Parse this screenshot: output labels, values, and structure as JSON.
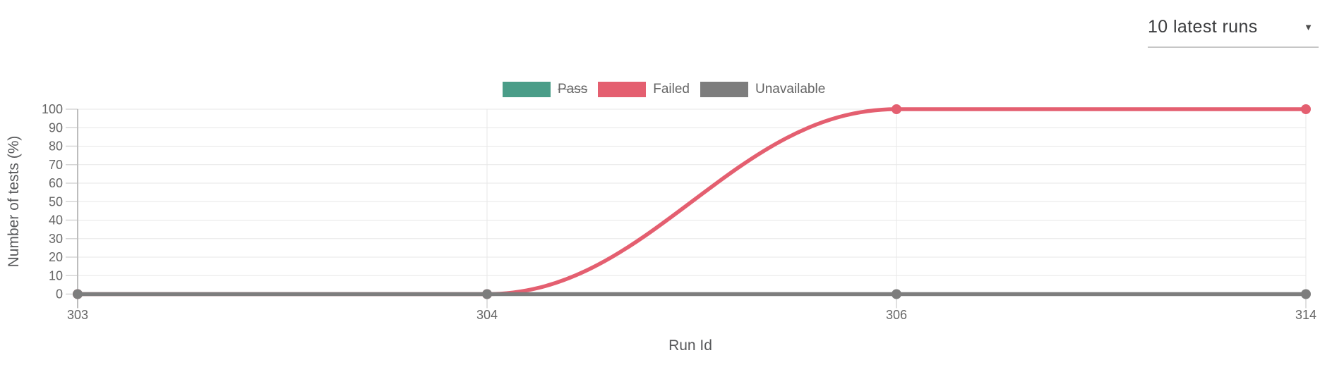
{
  "filter": {
    "value": "10 latest runs"
  },
  "chart_data": {
    "type": "line",
    "categories": [
      "303",
      "304",
      "306",
      "314"
    ],
    "series": [
      {
        "name": "Pass",
        "color": "#4a9d88",
        "hidden": true,
        "values": []
      },
      {
        "name": "Failed",
        "color": "#e45f70",
        "hidden": false,
        "smooth": true,
        "values": [
          0,
          0,
          100,
          100
        ]
      },
      {
        "name": "Unavailable",
        "color": "#7d7d7d",
        "hidden": false,
        "smooth": true,
        "values": [
          0,
          0,
          0,
          0
        ]
      }
    ],
    "xlabel": "Run Id",
    "ylabel": "Number of tests (%)",
    "ylim": [
      0,
      100
    ],
    "ytick_step": 10,
    "grid": true,
    "legend_position": "top",
    "colors": {
      "axis": "#bdbdbd",
      "gridline": "#e7e7e7",
      "tick": "#d6d6d6",
      "tick_label": "#666666",
      "axis_title": "#58595b"
    }
  }
}
